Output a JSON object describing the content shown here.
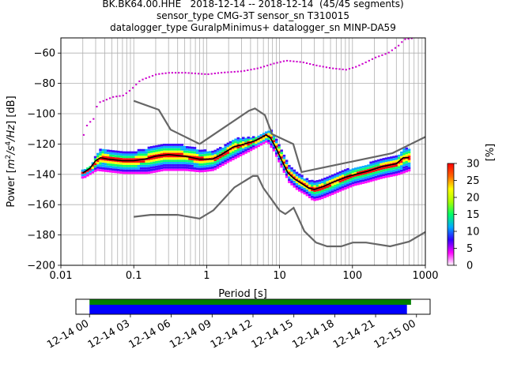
{
  "header": {
    "title_line1": "BK.BK64.00.HHE   2018-12-14 -- 2018-12-14  (45/45 segments)",
    "title_line2": "sensor_type CMG-3T sensor_sn T310015",
    "title_line3": "datalogger_type GuralpMinimus+ datalogger_sn MINP-DA59"
  },
  "chart_data": {
    "type": "heatmap",
    "xlabel": "Period [s]",
    "ylabel": "Power [m²/s⁴/Hz] [dB]",
    "ylabel_parts": {
      "a": "Power [",
      "b": "m",
      "c": "2",
      "d": "/s",
      "e": "4",
      "f": "/Hz",
      "g": "] [dB]"
    },
    "xscale": "log",
    "xlim": [
      0.01,
      1000
    ],
    "ylim": [
      -200,
      -50
    ],
    "xticks": [
      0.01,
      0.1,
      1,
      10,
      100,
      1000
    ],
    "xtick_labels": [
      "0.01",
      "0.1",
      "1",
      "10",
      "100",
      "1000"
    ],
    "yticks": [
      -200,
      -180,
      -160,
      -140,
      -120,
      -100,
      -80,
      -60
    ],
    "ytick_labels": [
      "−200",
      "−180",
      "−160",
      "−140",
      "−120",
      "−100",
      "−80",
      "−60"
    ],
    "grid": true,
    "colorbar": {
      "label": "[%]",
      "range": [
        0,
        30
      ],
      "ticks": [
        0,
        5,
        10,
        15,
        20,
        25,
        30
      ],
      "tick_labels": [
        "0",
        "5",
        "10",
        "15",
        "20",
        "25",
        "30"
      ],
      "colormap": [
        "#ffffff",
        "#ff00ff",
        "#3300ff",
        "#00aaff",
        "#00ff66",
        "#aaff00",
        "#ffff00",
        "#ff6600",
        "#ff0000"
      ]
    },
    "series": [
      {
        "name": "NHNM",
        "color": "#666666",
        "points": [
          [
            0.1,
            -91.5
          ],
          [
            0.22,
            -97.4
          ],
          [
            0.32,
            -110.5
          ],
          [
            0.8,
            -120
          ],
          [
            3.8,
            -98
          ],
          [
            4.6,
            -96.5
          ],
          [
            6.3,
            -101
          ],
          [
            7.9,
            -113.5
          ],
          [
            15.4,
            -120
          ],
          [
            20,
            -138.5
          ],
          [
            354.8,
            -126
          ],
          [
            10000,
            -91.5
          ]
        ]
      },
      {
        "name": "NLNM",
        "color": "#666666",
        "points": [
          [
            0.1,
            -168
          ],
          [
            0.17,
            -166.7
          ],
          [
            0.4,
            -166.7
          ],
          [
            0.8,
            -169.2
          ],
          [
            1.24,
            -163.7
          ],
          [
            2.4,
            -148.6
          ],
          [
            4.3,
            -141.1
          ],
          [
            5,
            -141.1
          ],
          [
            6,
            -149
          ],
          [
            10,
            -163.8
          ],
          [
            12,
            -166.2
          ],
          [
            15.6,
            -162.1
          ],
          [
            21.9,
            -177.5
          ],
          [
            31.6,
            -185
          ],
          [
            45,
            -187.5
          ],
          [
            70,
            -187.5
          ],
          [
            101,
            -185
          ],
          [
            154,
            -185
          ],
          [
            328,
            -187.5
          ],
          [
            600,
            -184.4
          ],
          [
            1000,
            -178
          ]
        ]
      },
      {
        "name": "mode",
        "color": "#000000",
        "points": [
          [
            0.02,
            -139
          ],
          [
            0.025,
            -136
          ],
          [
            0.03,
            -131
          ],
          [
            0.035,
            -129
          ],
          [
            0.045,
            -130
          ],
          [
            0.07,
            -131
          ],
          [
            0.1,
            -131
          ],
          [
            0.14,
            -130
          ],
          [
            0.2,
            -128
          ],
          [
            0.3,
            -127
          ],
          [
            0.5,
            -128
          ],
          [
            0.8,
            -130
          ],
          [
            1.2,
            -130
          ],
          [
            1.6,
            -127
          ],
          [
            2.3,
            -122
          ],
          [
            3.3,
            -120
          ],
          [
            4.5,
            -118
          ],
          [
            5.5,
            -116
          ],
          [
            6.5,
            -114
          ],
          [
            7.5,
            -116
          ],
          [
            9,
            -123
          ],
          [
            11,
            -132
          ],
          [
            13,
            -139
          ],
          [
            16,
            -143
          ],
          [
            20,
            -146
          ],
          [
            25,
            -149
          ],
          [
            30,
            -150
          ],
          [
            40,
            -148
          ],
          [
            55,
            -145
          ],
          [
            80,
            -142
          ],
          [
            110,
            -140
          ],
          [
            160,
            -138
          ],
          [
            250,
            -135
          ],
          [
            400,
            -133
          ],
          [
            500,
            -129
          ],
          [
            600,
            -129
          ]
        ]
      },
      {
        "name": "max",
        "color": "#cc00cc",
        "points": [
          [
            0.02,
            -114
          ],
          [
            0.022,
            -108
          ],
          [
            0.025,
            -105
          ],
          [
            0.028,
            -103
          ],
          [
            0.031,
            -93
          ],
          [
            0.04,
            -91
          ],
          [
            0.05,
            -89
          ],
          [
            0.07,
            -88
          ],
          [
            0.09,
            -84
          ],
          [
            0.12,
            -78
          ],
          [
            0.2,
            -74
          ],
          [
            0.3,
            -73
          ],
          [
            0.5,
            -73
          ],
          [
            1,
            -74
          ],
          [
            1.5,
            -73
          ],
          [
            3,
            -72
          ],
          [
            5,
            -70
          ],
          [
            8,
            -67
          ],
          [
            12,
            -65
          ],
          [
            20,
            -66
          ],
          [
            30,
            -68
          ],
          [
            50,
            -70
          ],
          [
            80,
            -71
          ],
          [
            110,
            -69
          ],
          [
            150,
            -66
          ],
          [
            200,
            -63
          ],
          [
            300,
            -60
          ],
          [
            420,
            -55
          ],
          [
            500,
            -51
          ],
          [
            700,
            -50
          ]
        ]
      },
      {
        "name": "min",
        "color": "#cc00cc",
        "points": [
          [
            0.02,
            -142
          ],
          [
            0.03,
            -137
          ],
          [
            0.045,
            -138
          ],
          [
            0.07,
            -139
          ],
          [
            0.1,
            -139
          ],
          [
            0.15,
            -139
          ],
          [
            0.25,
            -137
          ],
          [
            0.5,
            -137
          ],
          [
            0.8,
            -138
          ],
          [
            1.2,
            -137
          ],
          [
            2,
            -131
          ],
          [
            3.5,
            -125
          ],
          [
            5,
            -121
          ],
          [
            6.5,
            -118
          ],
          [
            8,
            -124
          ],
          [
            10,
            -134
          ],
          [
            13,
            -145
          ],
          [
            17,
            -150
          ],
          [
            22,
            -153
          ],
          [
            28,
            -157
          ],
          [
            35,
            -156
          ],
          [
            50,
            -153
          ],
          [
            70,
            -150
          ],
          [
            100,
            -147
          ],
          [
            150,
            -145
          ],
          [
            250,
            -142
          ],
          [
            400,
            -140
          ],
          [
            600,
            -137
          ]
        ]
      },
      {
        "name": "ridge",
        "color": "#00ff66",
        "points": [
          [
            0.02,
            -140
          ],
          [
            0.03,
            -134
          ],
          [
            0.04,
            -132
          ],
          [
            0.07,
            -134
          ],
          [
            0.1,
            -135
          ],
          [
            0.2,
            -133
          ],
          [
            0.5,
            -133
          ],
          [
            0.8,
            -134
          ],
          [
            1.2,
            -133
          ],
          [
            2,
            -126
          ],
          [
            3.3,
            -122
          ],
          [
            5,
            -119
          ],
          [
            6.5,
            -116
          ],
          [
            8,
            -119
          ],
          [
            10,
            -127
          ],
          [
            13,
            -138
          ],
          [
            17,
            -145
          ],
          [
            22,
            -148
          ],
          [
            30,
            -152
          ],
          [
            40,
            -150
          ],
          [
            60,
            -147
          ],
          [
            100,
            -144
          ],
          [
            160,
            -141
          ],
          [
            250,
            -139
          ],
          [
            400,
            -137
          ],
          [
            600,
            -133
          ]
        ]
      }
    ],
    "timeline": {
      "xtick_labels": [
        "12-14 00",
        "12-14 03",
        "12-14 06",
        "12-14 09",
        "12-14 12",
        "12-14 15",
        "12-14 18",
        "12-14 21",
        "12-15 00"
      ],
      "xlim_hours": [
        -1,
        25
      ],
      "data_coverage_hours": [
        0,
        24
      ],
      "bars": [
        {
          "name": "available",
          "color": "#008000",
          "start_hours": 0,
          "end_hours": 23.6
        },
        {
          "name": "used",
          "color": "#0000ff",
          "start_hours": 0,
          "end_hours": 23.3
        }
      ]
    }
  }
}
